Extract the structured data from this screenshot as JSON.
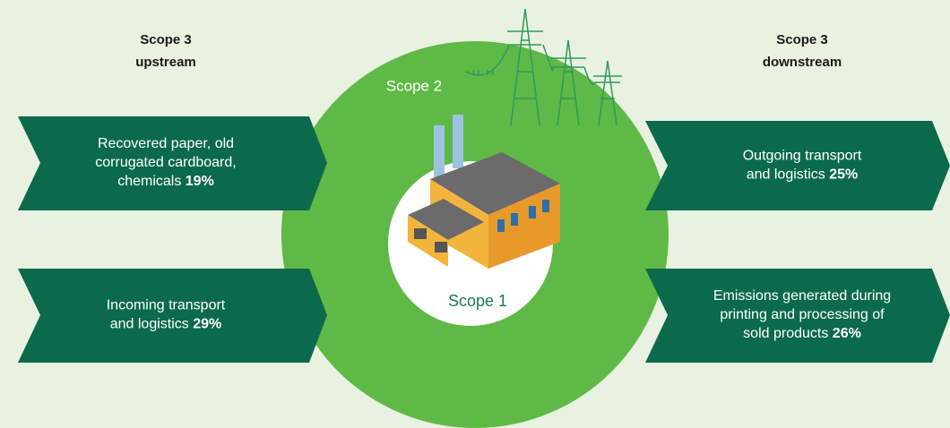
{
  "upstream": {
    "heading": [
      "Scope 3",
      "upstream"
    ],
    "items": [
      {
        "lines": [
          "Recovered paper, old",
          "corrugated cardboard,",
          "chemicals"
        ],
        "value": "19%"
      },
      {
        "lines": [
          "Incoming transport",
          "and logistics"
        ],
        "value": "29%"
      }
    ]
  },
  "downstream": {
    "heading": [
      "Scope 3",
      "downstream"
    ],
    "items": [
      {
        "lines": [
          "Outgoing transport",
          "and logistics"
        ],
        "value": "25%"
      },
      {
        "lines": [
          "Emissions generated during",
          "printing and processing of",
          "sold products"
        ],
        "value": "26%"
      }
    ]
  },
  "scope2": "Scope 2",
  "scope1": "Scope 1"
}
